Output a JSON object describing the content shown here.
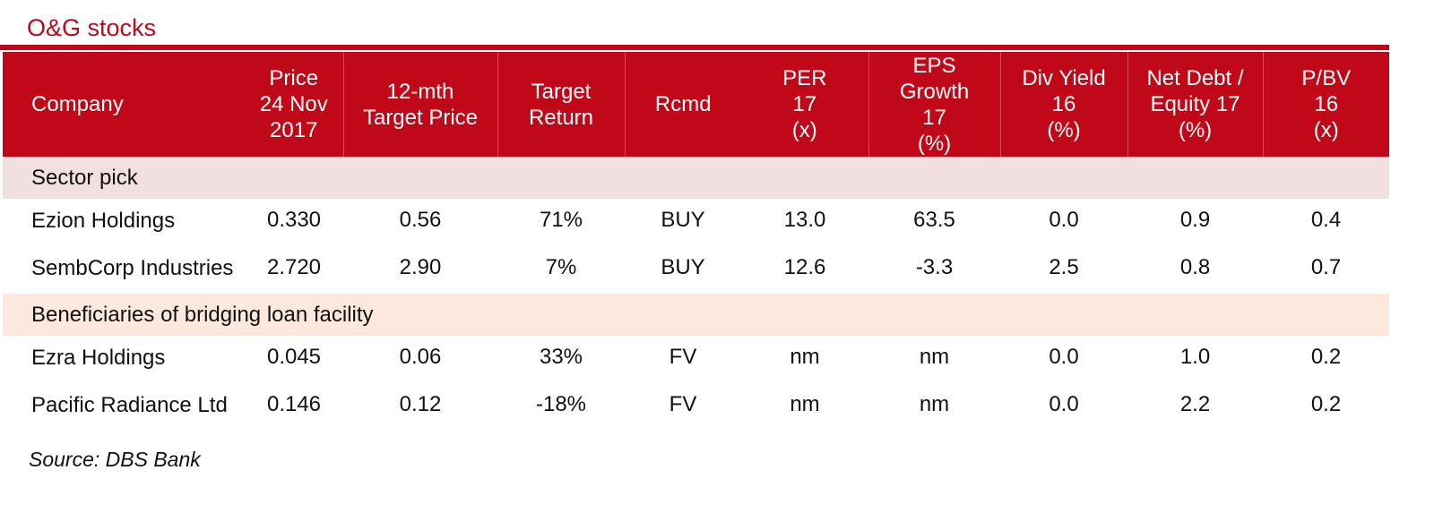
{
  "title": "O&G stocks",
  "accent_color": "#c00818",
  "headers": {
    "company": "Company",
    "price": [
      "Price",
      "24 Nov",
      "2017"
    ],
    "target_price": [
      "12-mth",
      "Target Price"
    ],
    "target_return": [
      "Target",
      "Return"
    ],
    "rcmd": "Rcmd",
    "per": [
      "PER",
      "17",
      "(x)"
    ],
    "eps_growth": [
      "EPS",
      "Growth",
      "17",
      "(%)"
    ],
    "div_yield": [
      "Div Yield",
      "16",
      "(%)"
    ],
    "net_debt": [
      "Net Debt /",
      "Equity 17",
      "(%)"
    ],
    "pbv": [
      "P/BV",
      "16",
      "(x)"
    ]
  },
  "sections": [
    {
      "label": "Sector pick",
      "color": "#f2dfe0",
      "rows": [
        {
          "company": "Ezion Holdings",
          "price": "0.330",
          "target_price": "0.56",
          "target_return": "71%",
          "rcmd": "BUY",
          "per": "13.0",
          "eps_growth": "63.5",
          "div_yield": "0.0",
          "net_debt": "0.9",
          "pbv": "0.4"
        },
        {
          "company": "SembCorp Industries",
          "price": "2.720",
          "target_price": "2.90",
          "target_return": "7%",
          "rcmd": "BUY",
          "per": "12.6",
          "eps_growth": "-3.3",
          "div_yield": "2.5",
          "net_debt": "0.8",
          "pbv": "0.7"
        }
      ]
    },
    {
      "label": "Beneficiaries of bridging loan facility",
      "color": "#fce8dc",
      "rows": [
        {
          "company": "Ezra Holdings",
          "price": "0.045",
          "target_price": "0.06",
          "target_return": "33%",
          "rcmd": "FV",
          "per": "nm",
          "eps_growth": "nm",
          "div_yield": "0.0",
          "net_debt": "1.0",
          "pbv": "0.2"
        },
        {
          "company": "Pacific Radiance Ltd",
          "price": "0.146",
          "target_price": "0.12",
          "target_return": "-18%",
          "rcmd": "FV",
          "per": "nm",
          "eps_growth": "nm",
          "div_yield": "0.0",
          "net_debt": "2.2",
          "pbv": "0.2"
        }
      ]
    }
  ],
  "source": "Source: DBS Bank"
}
